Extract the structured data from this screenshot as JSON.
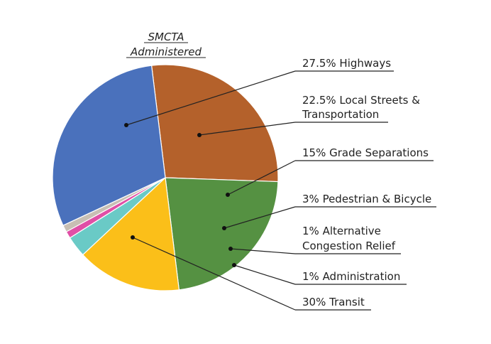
{
  "chart_data": {
    "type": "pie",
    "title_lines": [
      "SMCTA",
      "Administered"
    ],
    "slices": [
      {
        "label": "27.5% Highways",
        "value": 27.5,
        "color": "#B4612B"
      },
      {
        "label": "22.5% Local Streets & Transportation",
        "value": 22.5,
        "color": "#559142"
      },
      {
        "label": "15% Grade Separations",
        "value": 15,
        "color": "#FBBF19"
      },
      {
        "label": "3% Pedestrian & Bicycle",
        "value": 3,
        "color": "#6ACAC6"
      },
      {
        "label": "1% Alternative Congestion Relief",
        "value": 1,
        "color": "#E04FA6"
      },
      {
        "label": "1% Administration",
        "value": 1,
        "color": "#C8BFB4"
      },
      {
        "label": "30% Transit",
        "value": 30,
        "color": "#4A71BC"
      }
    ]
  }
}
